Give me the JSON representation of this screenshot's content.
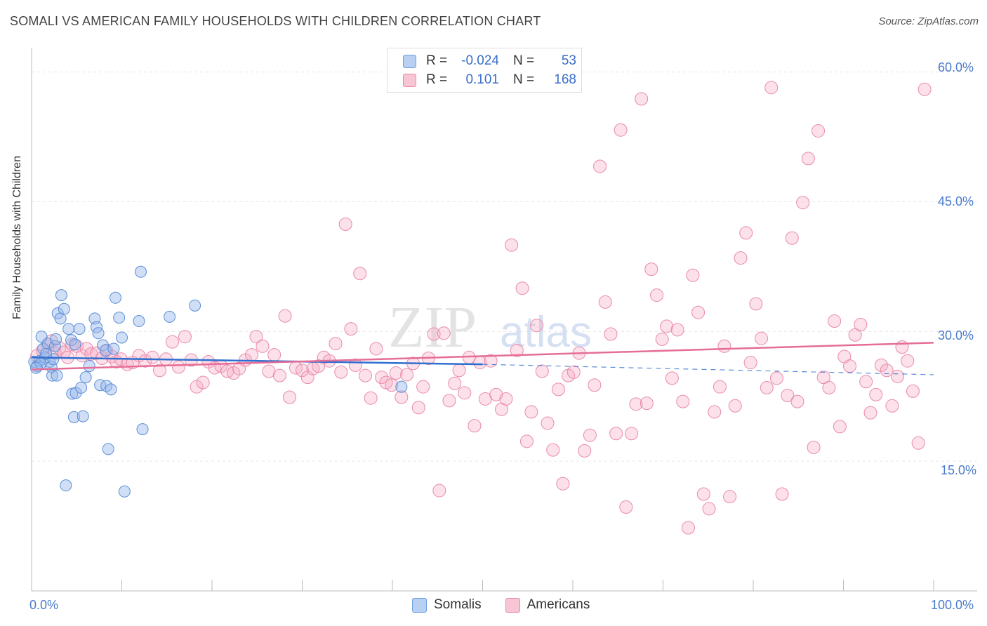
{
  "title": "SOMALI VS AMERICAN FAMILY HOUSEHOLDS WITH CHILDREN CORRELATION CHART",
  "source": "Source: ZipAtlas.com",
  "watermark": {
    "zip": "ZIP",
    "atlas": "atlas"
  },
  "legend_box": {
    "rows": [
      {
        "r_label": "R =",
        "r_value": "-0.024",
        "n_label": "N =",
        "n_value": "53",
        "fill": "#b8d0f2",
        "stroke": "#6f9fe0"
      },
      {
        "r_label": "R =",
        "r_value": "0.101",
        "n_label": "N =",
        "n_value": "168",
        "fill": "#f8c5d5",
        "stroke": "#e88aa8"
      }
    ]
  },
  "bottom_legend": [
    {
      "label": "Somalis",
      "fill": "#b8d0f2",
      "stroke": "#6f9fe0"
    },
    {
      "label": "Americans",
      "fill": "#f8c5d5",
      "stroke": "#e88aa8"
    }
  ],
  "colors": {
    "somali_point_fill": "rgba(150,185,235,0.45)",
    "somali_point_stroke": "#5b8ed6",
    "american_point_fill": "rgba(245,170,195,0.35)",
    "american_point_stroke": "#e98aaa",
    "somali_line": "#2f6fcf",
    "american_line": "#e56d97",
    "grid": "#e6e6e6",
    "axis_label": "#4a7acb"
  },
  "chart_data": {
    "type": "scatter",
    "title": "SOMALI VS AMERICAN FAMILY HOUSEHOLDS WITH CHILDREN CORRELATION CHART",
    "xlabel": "",
    "ylabel": "Family Households with Children",
    "xlim": [
      0,
      100
    ],
    "ylim": [
      0,
      62
    ],
    "x_tick_labels": [
      {
        "value": 0,
        "label": "0.0%"
      },
      {
        "value": 100,
        "label": "100.0%"
      }
    ],
    "y_tick_labels": [
      {
        "value": 15,
        "label": "15.0%"
      },
      {
        "value": 30,
        "label": "30.0%"
      },
      {
        "value": 45,
        "label": "45.0%"
      },
      {
        "value": 60,
        "label": "60.0%"
      }
    ],
    "series": [
      {
        "name": "Somalis",
        "trend": {
          "x0": 0,
          "y0": 27.0,
          "x1": 50,
          "y1": 26.2,
          "dash_to_x": 100,
          "dash_to_y": 25.0
        },
        "points": [
          [
            0.3,
            26.5
          ],
          [
            0.6,
            26.0
          ],
          [
            0.9,
            26.6
          ],
          [
            1.1,
            29.4
          ],
          [
            1.3,
            28.0
          ],
          [
            1.5,
            27.0
          ],
          [
            1.8,
            28.6
          ],
          [
            2.0,
            26.5
          ],
          [
            2.2,
            25.9
          ],
          [
            2.3,
            24.9
          ],
          [
            2.6,
            28.3
          ],
          [
            2.7,
            29.1
          ],
          [
            2.8,
            24.9
          ],
          [
            2.9,
            32.1
          ],
          [
            3.2,
            31.5
          ],
          [
            3.3,
            34.2
          ],
          [
            3.6,
            32.6
          ],
          [
            3.8,
            12.2
          ],
          [
            4.1,
            30.3
          ],
          [
            4.4,
            29.0
          ],
          [
            4.5,
            22.8
          ],
          [
            4.7,
            20.1
          ],
          [
            4.8,
            28.5
          ],
          [
            4.9,
            22.9
          ],
          [
            5.3,
            30.3
          ],
          [
            5.5,
            23.5
          ],
          [
            5.7,
            20.2
          ],
          [
            6.0,
            24.7
          ],
          [
            6.4,
            26.0
          ],
          [
            7.0,
            31.5
          ],
          [
            7.2,
            30.5
          ],
          [
            7.4,
            29.8
          ],
          [
            7.6,
            23.8
          ],
          [
            7.9,
            28.4
          ],
          [
            8.2,
            27.8
          ],
          [
            8.3,
            23.7
          ],
          [
            8.5,
            16.4
          ],
          [
            8.8,
            23.3
          ],
          [
            9.1,
            28.0
          ],
          [
            9.3,
            33.9
          ],
          [
            9.7,
            31.6
          ],
          [
            10.0,
            29.3
          ],
          [
            10.3,
            11.5
          ],
          [
            11.9,
            31.2
          ],
          [
            12.1,
            36.9
          ],
          [
            12.3,
            18.7
          ],
          [
            15.3,
            31.7
          ],
          [
            18.1,
            33.0
          ],
          [
            41.0,
            23.6
          ],
          [
            1.0,
            26.3
          ],
          [
            0.5,
            25.8
          ],
          [
            2.4,
            26.8
          ],
          [
            1.6,
            27.4
          ]
        ]
      },
      {
        "name": "Americans",
        "trend": {
          "x0": 0,
          "y0": 25.6,
          "x1": 100,
          "y1": 28.7
        },
        "points": [
          [
            0.6,
            27.2
          ],
          [
            1.2,
            27.8
          ],
          [
            1.8,
            28.3
          ],
          [
            2.2,
            28.9
          ],
          [
            2.6,
            27.5
          ],
          [
            3.1,
            28.1
          ],
          [
            3.6,
            27.6
          ],
          [
            4.0,
            27.0
          ],
          [
            4.5,
            28.5
          ],
          [
            5.0,
            28.3
          ],
          [
            5.6,
            27.2
          ],
          [
            6.1,
            28.0
          ],
          [
            6.6,
            27.4
          ],
          [
            7.2,
            27.5
          ],
          [
            7.8,
            26.9
          ],
          [
            8.3,
            27.8
          ],
          [
            8.9,
            27.1
          ],
          [
            9.4,
            26.5
          ],
          [
            9.9,
            26.8
          ],
          [
            10.6,
            26.2
          ],
          [
            11.2,
            26.4
          ],
          [
            11.9,
            27.2
          ],
          [
            12.6,
            26.6
          ],
          [
            13.4,
            27.0
          ],
          [
            14.2,
            25.5
          ],
          [
            14.9,
            26.8
          ],
          [
            15.6,
            28.8
          ],
          [
            16.3,
            25.9
          ],
          [
            17.0,
            29.4
          ],
          [
            17.7,
            26.7
          ],
          [
            18.3,
            23.6
          ],
          [
            19.0,
            24.1
          ],
          [
            19.6,
            26.5
          ],
          [
            20.3,
            25.8
          ],
          [
            21.0,
            26.0
          ],
          [
            21.7,
            25.4
          ],
          [
            22.4,
            25.2
          ],
          [
            23.0,
            25.7
          ],
          [
            23.7,
            26.7
          ],
          [
            24.4,
            27.3
          ],
          [
            24.9,
            29.4
          ],
          [
            25.6,
            28.3
          ],
          [
            26.3,
            25.4
          ],
          [
            26.9,
            27.3
          ],
          [
            27.5,
            24.9
          ],
          [
            28.1,
            31.8
          ],
          [
            28.6,
            22.4
          ],
          [
            29.3,
            25.8
          ],
          [
            30.0,
            25.5
          ],
          [
            30.6,
            24.7
          ],
          [
            31.2,
            25.7
          ],
          [
            31.8,
            26.0
          ],
          [
            32.4,
            27.0
          ],
          [
            33.0,
            26.6
          ],
          [
            33.7,
            28.6
          ],
          [
            34.3,
            25.3
          ],
          [
            34.8,
            42.4
          ],
          [
            35.4,
            30.3
          ],
          [
            35.9,
            26.1
          ],
          [
            36.4,
            36.7
          ],
          [
            37.0,
            24.9
          ],
          [
            37.6,
            22.3
          ],
          [
            38.2,
            28.0
          ],
          [
            38.8,
            24.7
          ],
          [
            39.3,
            24.1
          ],
          [
            39.9,
            23.8
          ],
          [
            40.4,
            25.2
          ],
          [
            41.0,
            22.4
          ],
          [
            41.6,
            25.0
          ],
          [
            42.3,
            26.3
          ],
          [
            42.9,
            21.2
          ],
          [
            43.4,
            23.6
          ],
          [
            44.0,
            26.9
          ],
          [
            44.6,
            29.7
          ],
          [
            45.2,
            11.6
          ],
          [
            45.7,
            29.8
          ],
          [
            46.3,
            22.0
          ],
          [
            46.9,
            24.0
          ],
          [
            47.4,
            25.5
          ],
          [
            48.0,
            22.9
          ],
          [
            48.5,
            27.0
          ],
          [
            49.1,
            19.1
          ],
          [
            49.7,
            26.4
          ],
          [
            50.3,
            22.2
          ],
          [
            50.9,
            26.6
          ],
          [
            51.5,
            22.7
          ],
          [
            52.1,
            21.0
          ],
          [
            52.6,
            22.2
          ],
          [
            53.2,
            40.0
          ],
          [
            53.8,
            27.8
          ],
          [
            54.4,
            35.0
          ],
          [
            54.9,
            17.3
          ],
          [
            55.4,
            20.7
          ],
          [
            56.0,
            30.7
          ],
          [
            56.6,
            25.4
          ],
          [
            57.2,
            19.4
          ],
          [
            57.8,
            16.3
          ],
          [
            58.4,
            23.3
          ],
          [
            58.9,
            12.4
          ],
          [
            59.5,
            24.9
          ],
          [
            60.1,
            25.3
          ],
          [
            60.7,
            27.5
          ],
          [
            61.3,
            16.2
          ],
          [
            61.9,
            18.0
          ],
          [
            62.4,
            23.8
          ],
          [
            63.0,
            49.1
          ],
          [
            63.6,
            33.4
          ],
          [
            64.2,
            29.7
          ],
          [
            64.8,
            18.2
          ],
          [
            65.3,
            53.3
          ],
          [
            65.9,
            9.7
          ],
          [
            66.5,
            18.2
          ],
          [
            67.0,
            21.6
          ],
          [
            67.6,
            56.9
          ],
          [
            68.2,
            21.7
          ],
          [
            68.7,
            37.2
          ],
          [
            69.3,
            34.2
          ],
          [
            69.9,
            29.1
          ],
          [
            70.4,
            30.6
          ],
          [
            71.0,
            24.6
          ],
          [
            71.6,
            30.2
          ],
          [
            72.2,
            21.9
          ],
          [
            72.8,
            7.3
          ],
          [
            73.3,
            36.5
          ],
          [
            73.9,
            32.2
          ],
          [
            74.5,
            11.2
          ],
          [
            75.1,
            9.5
          ],
          [
            75.7,
            20.7
          ],
          [
            76.3,
            23.6
          ],
          [
            76.8,
            28.3
          ],
          [
            77.4,
            10.9
          ],
          [
            78.0,
            21.4
          ],
          [
            78.6,
            38.5
          ],
          [
            79.2,
            41.4
          ],
          [
            79.7,
            26.4
          ],
          [
            80.3,
            33.2
          ],
          [
            80.9,
            29.2
          ],
          [
            81.5,
            23.5
          ],
          [
            82.0,
            58.2
          ],
          [
            82.6,
            24.6
          ],
          [
            83.2,
            11.2
          ],
          [
            83.8,
            22.6
          ],
          [
            84.3,
            40.8
          ],
          [
            84.9,
            21.9
          ],
          [
            85.5,
            44.9
          ],
          [
            86.1,
            50.0
          ],
          [
            86.7,
            16.6
          ],
          [
            87.2,
            53.2
          ],
          [
            87.8,
            24.7
          ],
          [
            88.4,
            23.5
          ],
          [
            89.0,
            31.2
          ],
          [
            89.6,
            19.0
          ],
          [
            90.1,
            27.1
          ],
          [
            90.7,
            26.0
          ],
          [
            91.3,
            29.6
          ],
          [
            91.9,
            30.8
          ],
          [
            92.5,
            24.2
          ],
          [
            93.0,
            20.6
          ],
          [
            93.6,
            22.7
          ],
          [
            94.2,
            26.1
          ],
          [
            94.8,
            25.5
          ],
          [
            95.4,
            21.4
          ],
          [
            96.0,
            24.8
          ],
          [
            96.5,
            28.2
          ],
          [
            97.1,
            26.6
          ],
          [
            97.7,
            23.1
          ],
          [
            98.3,
            17.1
          ],
          [
            99.0,
            58.0
          ]
        ]
      }
    ]
  }
}
